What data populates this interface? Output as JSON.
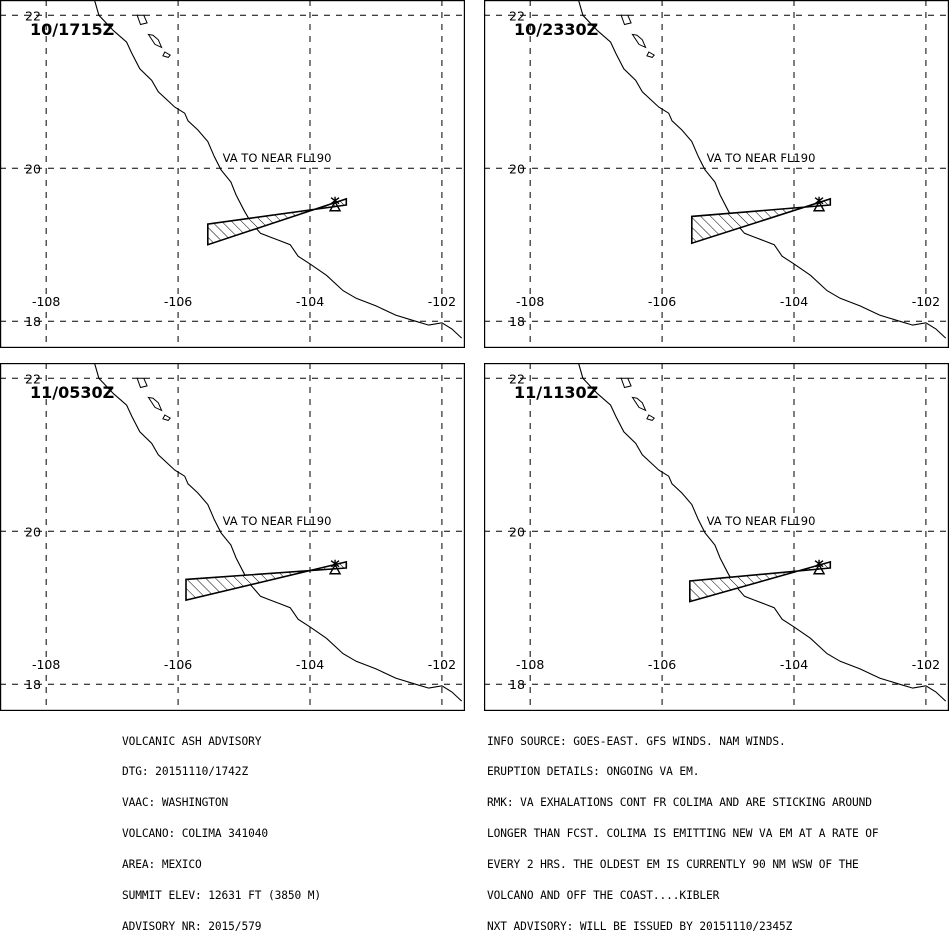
{
  "map": {
    "lon_range": [
      -108.7,
      -101.65
    ],
    "lat_range": [
      17.65,
      22.2
    ],
    "lon_ticks": [
      "-108",
      "-106",
      "-104",
      "-102"
    ],
    "lat_ticks": [
      "22",
      "20",
      "18"
    ],
    "grid_lons": [
      -108,
      -106,
      -104,
      -102
    ],
    "grid_lats": [
      22,
      20,
      18
    ],
    "volcano": {
      "lon": -103.62,
      "lat": 19.51
    },
    "coastline": [
      [
        -107.3,
        22.3
      ],
      [
        -107.2,
        22.0
      ],
      [
        -106.98,
        21.8
      ],
      [
        -106.78,
        21.65
      ],
      [
        -106.7,
        21.5
      ],
      [
        -106.58,
        21.3
      ],
      [
        -106.4,
        21.15
      ],
      [
        -106.3,
        21.0
      ],
      [
        -106.05,
        20.8
      ],
      [
        -105.9,
        20.72
      ],
      [
        -105.85,
        20.62
      ],
      [
        -105.7,
        20.5
      ],
      [
        -105.55,
        20.35
      ],
      [
        -105.45,
        20.15
      ],
      [
        -105.35,
        19.98
      ],
      [
        -105.2,
        19.82
      ],
      [
        -105.12,
        19.65
      ],
      [
        -105.0,
        19.45
      ],
      [
        -104.9,
        19.3
      ],
      [
        -104.75,
        19.15
      ],
      [
        -104.6,
        19.1
      ],
      [
        -104.45,
        19.05
      ],
      [
        -104.3,
        19.0
      ],
      [
        -104.18,
        18.85
      ],
      [
        -104.0,
        18.75
      ],
      [
        -103.75,
        18.6
      ],
      [
        -103.5,
        18.4
      ],
      [
        -103.3,
        18.3
      ],
      [
        -103.0,
        18.2
      ],
      [
        -102.7,
        18.08
      ],
      [
        -102.4,
        18.0
      ],
      [
        -102.2,
        17.95
      ],
      [
        -102.0,
        17.98
      ],
      [
        -101.85,
        17.9
      ],
      [
        -101.7,
        17.78
      ]
    ],
    "islands": [
      [
        [
          -106.62,
          22.0
        ],
        [
          -106.57,
          21.88
        ],
        [
          -106.47,
          21.9
        ],
        [
          -106.52,
          22.0
        ]
      ],
      [
        [
          -106.45,
          21.75
        ],
        [
          -106.35,
          21.62
        ],
        [
          -106.25,
          21.58
        ],
        [
          -106.3,
          21.68
        ],
        [
          -106.38,
          21.74
        ]
      ],
      [
        [
          -106.2,
          21.52
        ],
        [
          -106.12,
          21.48
        ],
        [
          -106.15,
          21.45
        ],
        [
          -106.23,
          21.47
        ]
      ]
    ]
  },
  "panels": [
    {
      "time": "10/1715Z",
      "label": "VA TO NEAR FL190",
      "ash_polygon": [
        [
          -103.45,
          19.52
        ],
        [
          -105.55,
          19.27
        ],
        [
          -105.55,
          19.0
        ],
        [
          -103.45,
          19.6
        ]
      ]
    },
    {
      "time": "10/2330Z",
      "label": "VA TO NEAR FL190",
      "ash_polygon": [
        [
          -103.45,
          19.52
        ],
        [
          -105.55,
          19.37
        ],
        [
          -105.55,
          19.02
        ],
        [
          -103.45,
          19.6
        ]
      ]
    },
    {
      "time": "11/0530Z",
      "label": "VA TO NEAR FL190",
      "ash_polygon": [
        [
          -103.45,
          19.52
        ],
        [
          -105.88,
          19.37
        ],
        [
          -105.88,
          19.1
        ],
        [
          -103.45,
          19.6
        ]
      ]
    },
    {
      "time": "11/1130Z",
      "label": "VA TO NEAR FL190",
      "ash_polygon": [
        [
          -103.45,
          19.52
        ],
        [
          -105.58,
          19.35
        ],
        [
          -105.58,
          19.08
        ],
        [
          -103.45,
          19.6
        ]
      ]
    }
  ],
  "advisory_left": [
    "VOLCANIC ASH ADVISORY",
    "DTG: 20151110/1742Z",
    "VAAC: WASHINGTON",
    "VOLCANO: COLIMA 341040",
    "AREA: MEXICO",
    "SUMMIT ELEV: 12631 FT (3850 M)",
    "ADVISORY NR: 2015/579"
  ],
  "advisory_right": [
    "INFO SOURCE: GOES-EAST. GFS WINDS. NAM WINDS.",
    "ERUPTION DETAILS: ONGOING VA EM.",
    "RMK: VA EXHALATIONS CONT FR COLIMA AND ARE STICKING AROUND",
    "LONGER THAN FCST. COLIMA IS EMITTING NEW VA EM AT A RATE OF",
    "EVERY 2 HRS. THE OLDEST EM IS CURRENTLY 90 NM WSW OF THE",
    "VOLCANO AND OFF THE COAST....KIBLER",
    "NXT ADVISORY: WILL BE ISSUED BY 20151110/2345Z"
  ]
}
